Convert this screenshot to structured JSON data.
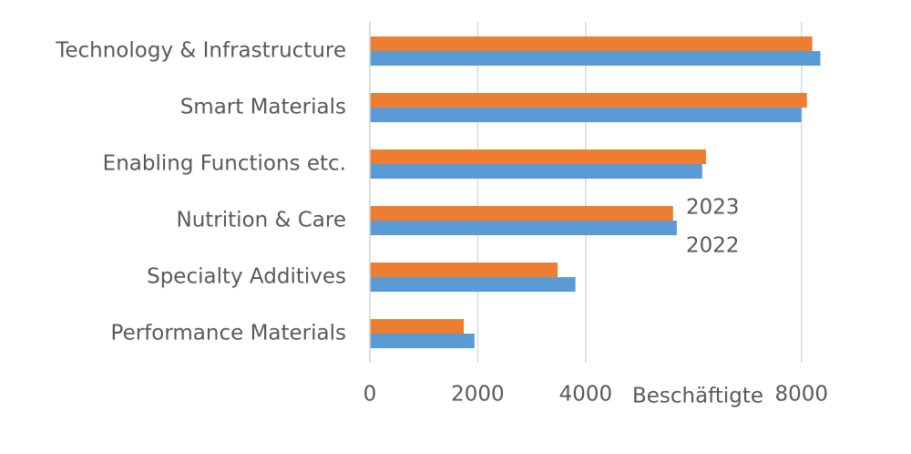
{
  "chart_data": {
    "type": "hbar",
    "categories": [
      "Technology & Infrastructure",
      "Smart Materials",
      "Enabling Functions etc.",
      "Nutrition & Care",
      "Specialty Additives",
      "Performance Materials"
    ],
    "series": [
      {
        "name": "2023",
        "color": "#ed7d31",
        "values": [
          8200,
          8100,
          6230,
          5620,
          3480,
          1740
        ]
      },
      {
        "name": "2022",
        "color": "#5b9bd5",
        "values": [
          8350,
          8000,
          6160,
          5690,
          3810,
          1940
        ]
      }
    ],
    "xlabel": "Beschäftigte",
    "xlim": [
      0,
      9000
    ],
    "xticks": [
      0,
      2000,
      4000,
      8000
    ],
    "grid": true
  }
}
